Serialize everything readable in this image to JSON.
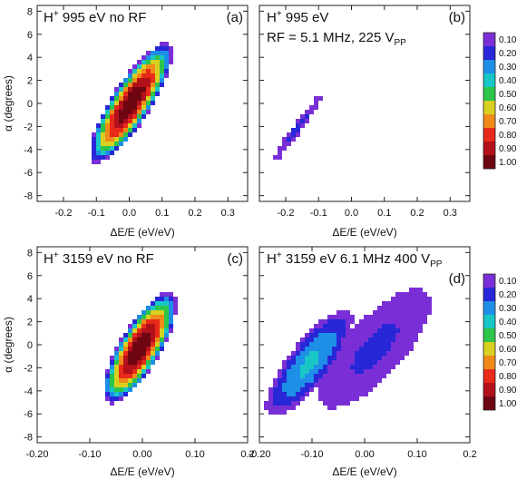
{
  "colorbar": {
    "levels": [
      "0.10",
      "0.20",
      "0.30",
      "0.40",
      "0.50",
      "0.60",
      "0.70",
      "0.80",
      "0.90",
      "1.00"
    ],
    "colors": [
      "#7a2fd6",
      "#2727d8",
      "#1e8fe6",
      "#19c6c6",
      "#2cc44b",
      "#d8d020",
      "#f08a18",
      "#e82a1a",
      "#b2101a",
      "#6e0612"
    ]
  },
  "chart_data": [
    {
      "type": "heatmap",
      "panel": "a",
      "title": "H⁺ 995 eV no RF",
      "title_parts": {
        "ion": "H",
        "charge": "+",
        "rest": " 995 eV no RF"
      },
      "letter": "(a)",
      "xlabel": "ΔE/E (eV/eV)",
      "ylabel": "α (degrees)",
      "xlim": [
        -0.28,
        0.36
      ],
      "ylim": [
        -8.5,
        8.5
      ],
      "xticks": [
        "-0.2",
        "-0.1",
        "0.0",
        "0.1",
        "0.2",
        "0.3"
      ],
      "xtick_values": [
        -0.2,
        -0.1,
        0.0,
        0.1,
        0.2,
        0.3
      ],
      "yticks": [
        "-8",
        "-6",
        "-4",
        "-2",
        "0",
        "2",
        "4",
        "6",
        "8"
      ],
      "ytick_values": [
        -8,
        -6,
        -4,
        -2,
        0,
        2,
        4,
        6,
        8
      ],
      "blobs": [
        {
          "center": [
            0.005,
            0.0
          ],
          "ax": 0.07,
          "ay": 5.2,
          "slope": 50,
          "peak": 1.0
        }
      ]
    },
    {
      "type": "heatmap",
      "panel": "b",
      "title_parts": {
        "ion": "H",
        "charge": "+",
        "rest": " 995 eV"
      },
      "title_line2_parts": {
        "text": "RF = 5.1 MHz, 225 V",
        "sub": "PP"
      },
      "letter": "(b)",
      "xlabel": "ΔE/E (eV/eV)",
      "xlim": [
        -0.28,
        0.36
      ],
      "ylim": [
        -8.5,
        8.5
      ],
      "xticks": [
        "-0.2",
        "-0.1",
        "0.0",
        "0.1",
        "0.2",
        "0.3"
      ],
      "xtick_values": [
        -0.2,
        -0.1,
        0.0,
        0.1,
        0.2,
        0.3
      ],
      "blobs": [
        {
          "center": [
            -0.165,
            -2.2
          ],
          "ax": 0.018,
          "ay": 3.0,
          "slope": 40,
          "peak": 0.13
        }
      ]
    },
    {
      "type": "heatmap",
      "panel": "c",
      "title_parts": {
        "ion": "H",
        "charge": "+",
        "rest": " 3159 eV no RF"
      },
      "letter": "(c)",
      "xlabel": "ΔE/E (eV/eV)",
      "ylabel": "α (degrees)",
      "xlim": [
        -0.2,
        0.2
      ],
      "ylim": [
        -8.5,
        8.5
      ],
      "xticks": [
        "-0.20",
        "-0.10",
        "0.00",
        "0.10",
        "0.2"
      ],
      "xtick_values": [
        -0.2,
        -0.1,
        0.0,
        0.1,
        0.2
      ],
      "yticks": [
        "-8",
        "-6",
        "-4",
        "-2",
        "0",
        "2",
        "4",
        "6",
        "8"
      ],
      "ytick_values": [
        -8,
        -6,
        -4,
        -2,
        0,
        2,
        4,
        6,
        8
      ],
      "blobs": [
        {
          "center": [
            -0.005,
            -0.3
          ],
          "ax": 0.045,
          "ay": 4.8,
          "slope": 90,
          "peak": 1.0
        }
      ]
    },
    {
      "type": "heatmap",
      "panel": "d",
      "title_parts": {
        "ion": "H",
        "charge": "+",
        "rest": " 3159 eV 6.1 MHz 400 V",
        "sub": "PP"
      },
      "letter": "(d)",
      "xlabel": "ΔE/E (eV/eV)",
      "xlim": [
        -0.2,
        0.2
      ],
      "ylim": [
        -8.5,
        8.5
      ],
      "xticks": [
        "-0.20",
        "-0.10",
        "0.00",
        "0.10",
        "0.2"
      ],
      "xtick_values": [
        -0.2,
        -0.1,
        0.0,
        0.1,
        0.2
      ],
      "blobs": [
        {
          "center": [
            -0.105,
            -1.6
          ],
          "ax": 0.05,
          "ay": 4.6,
          "slope": 70,
          "peak": 0.32
        },
        {
          "center": [
            0.02,
            -0.3
          ],
          "ax": 0.07,
          "ay": 5.2,
          "slope": 65,
          "peak": 0.12
        }
      ]
    }
  ]
}
